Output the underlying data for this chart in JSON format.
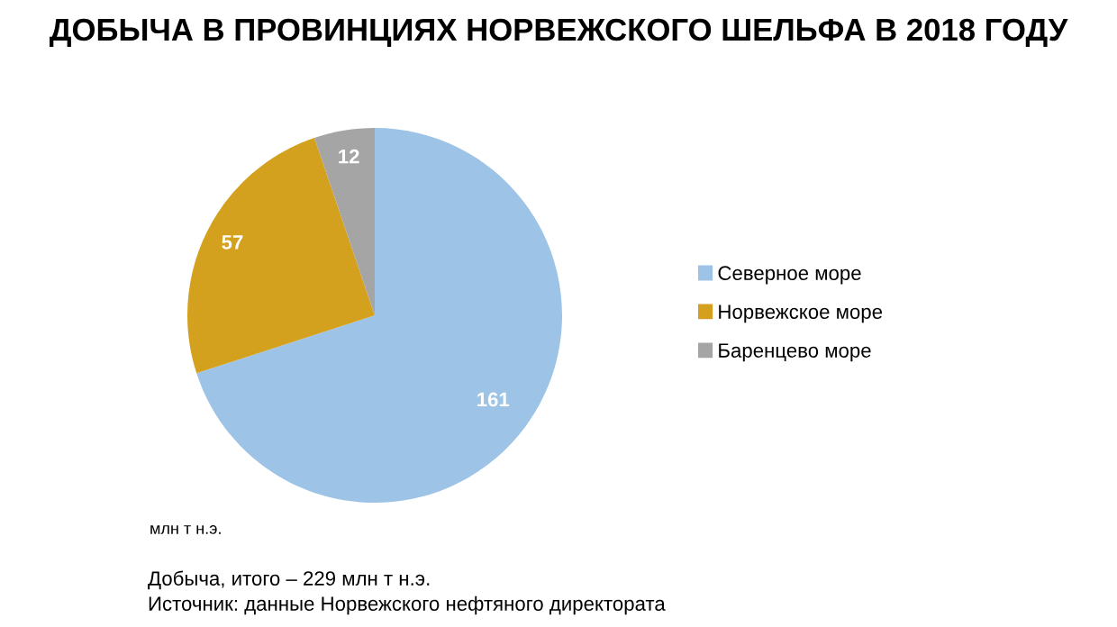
{
  "chart_data": {
    "type": "pie",
    "title": "ДОБЫЧА В ПРОВИНЦИЯХ НОРВЕЖСКОГО ШЕЛЬФА В 2018 ГОДУ",
    "categories": [
      "Северное море",
      "Норвежское море",
      "Баренцево море"
    ],
    "values": [
      161,
      57,
      12
    ],
    "colors": [
      "#9dc3e6",
      "#d4a11e",
      "#a5a5a5"
    ],
    "data_labels": true,
    "legend": "right",
    "annotations": [
      "млн т н.э.",
      "Добыча, итого – 229 млн т н.э.",
      "Источник: данные Норвежского нефтяного директората"
    ]
  }
}
